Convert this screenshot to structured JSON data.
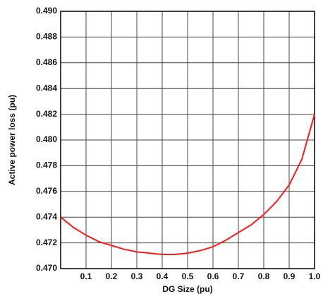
{
  "chart_data": {
    "type": "line",
    "x_label": "DG Size (pu)",
    "y_label": "Active power loss (pu)",
    "x": [
      0,
      0.05,
      0.1,
      0.15,
      0.2,
      0.25,
      0.3,
      0.35,
      0.4,
      0.45,
      0.5,
      0.55,
      0.6,
      0.65,
      0.7,
      0.75,
      0.8,
      0.85,
      0.9,
      0.95,
      1.0
    ],
    "values": [
      0.474,
      0.4732,
      0.4726,
      0.4721,
      0.4718,
      0.4715,
      0.4713,
      0.4712,
      0.4711,
      0.4711,
      0.4712,
      0.4714,
      0.4717,
      0.4722,
      0.4728,
      0.4734,
      0.4742,
      0.4752,
      0.4765,
      0.4785,
      0.482
    ],
    "color": "#ff1a1a",
    "xlim": [
      0,
      1.0
    ],
    "ylim": [
      0.47,
      0.49
    ],
    "xticks": [
      0.1,
      0.2,
      0.3,
      0.4,
      0.5,
      0.6,
      0.7,
      0.8,
      0.9,
      {
        "value": 1.0,
        "label": "1.0"
      }
    ],
    "yticks": [
      {
        "value": 0.47,
        "label": "0.470"
      },
      0.472,
      0.474,
      0.476,
      0.478,
      {
        "value": 0.48,
        "label": "0.480"
      },
      0.482,
      0.484,
      0.486,
      0.488,
      {
        "value": 0.49,
        "label": "0.490"
      }
    ],
    "grid": true
  }
}
